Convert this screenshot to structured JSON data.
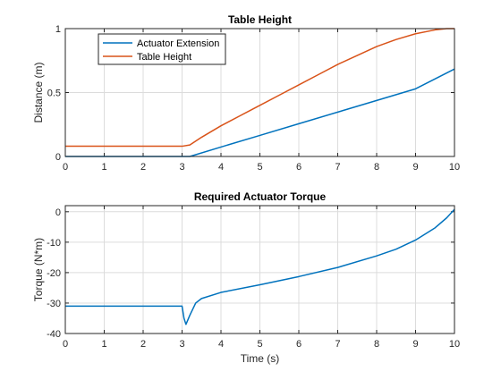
{
  "colors": {
    "series_blue": "#0072BD",
    "series_orange": "#D95319"
  },
  "chart_data": [
    {
      "type": "line",
      "title": "Table Height",
      "xlabel": "",
      "ylabel": "Distance (m)",
      "xlim": [
        0,
        10
      ],
      "ylim": [
        0,
        1
      ],
      "xticks": [
        "0",
        "1",
        "2",
        "3",
        "4",
        "5",
        "6",
        "7",
        "8",
        "9",
        "10"
      ],
      "yticks": [
        "0",
        "0.5",
        "1"
      ],
      "ytick_values": [
        0,
        0.5,
        1
      ],
      "grid": true,
      "legend": "top-left",
      "series": [
        {
          "name": "Actuator Extension",
          "color": "#0072BD",
          "x": [
            0,
            1,
            2,
            3,
            3.2,
            4,
            5,
            6,
            7,
            8,
            9,
            10
          ],
          "y": [
            0,
            0,
            0,
            0,
            0,
            0.074,
            0.165,
            0.256,
            0.347,
            0.438,
            0.529,
            0.684
          ]
        },
        {
          "name": "Table Height",
          "color": "#D95319",
          "x": [
            0,
            1,
            2,
            3,
            3.2,
            3.5,
            4,
            4.5,
            5,
            5.5,
            6,
            6.5,
            7,
            7.5,
            8,
            8.5,
            9,
            9.5,
            9.8,
            10
          ],
          "y": [
            0.08,
            0.08,
            0.08,
            0.08,
            0.09,
            0.15,
            0.24,
            0.32,
            0.4,
            0.48,
            0.56,
            0.64,
            0.72,
            0.79,
            0.86,
            0.915,
            0.96,
            0.99,
            1.0,
            1.0
          ]
        }
      ]
    },
    {
      "type": "line",
      "title": "Required Actuator Torque",
      "xlabel": "Time (s)",
      "ylabel": "Torque (N*m)",
      "xlim": [
        0,
        10
      ],
      "ylim": [
        -40,
        2
      ],
      "xticks": [
        "0",
        "1",
        "2",
        "3",
        "4",
        "5",
        "6",
        "7",
        "8",
        "9",
        "10"
      ],
      "yticks": [
        "0",
        "-10",
        "-20",
        "-30",
        "-40"
      ],
      "ytick_values": [
        0,
        -10,
        -20,
        -30,
        -40
      ],
      "grid": true,
      "legend": "none",
      "series": [
        {
          "color": "#0072BD",
          "x": [
            0,
            1,
            2,
            3,
            3.05,
            3.1,
            3.2,
            3.35,
            3.5,
            4,
            5,
            6,
            7,
            8,
            8.5,
            9,
            9.5,
            9.8,
            10
          ],
          "y": [
            -31,
            -31,
            -31,
            -31,
            -35,
            -37,
            -34,
            -30,
            -28.5,
            -26.5,
            -24,
            -21.3,
            -18.3,
            -14.5,
            -12.3,
            -9.3,
            -5.3,
            -2,
            0.8
          ]
        }
      ]
    }
  ]
}
